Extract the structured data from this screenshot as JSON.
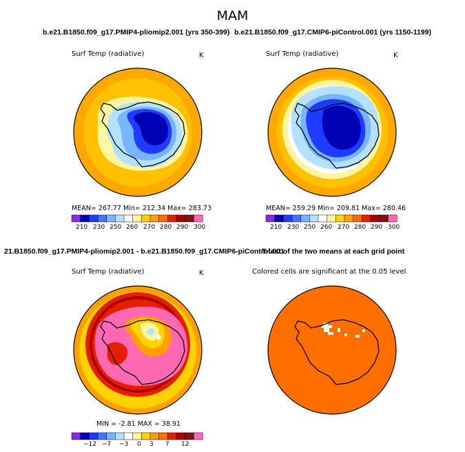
{
  "figure": {
    "season": "MAM",
    "case1_title": "b.e21.B1850.f09_g17.PMIP4-pliomip2.001 (yrs 350-399)",
    "case2_title": "b.e21.B1850.f09_g17.CMIP6-piControl.001 (yrs 1150-1199)",
    "diff_title": "21.B1850.f09_g17.PMIP4-pliomip2.001 - b.e21.B1850.f09_g17.CMIP6-piControl.001",
    "ttest_title": "T-test of the two means at each grid point"
  },
  "panels": {
    "p1": {
      "variable": "Surf Temp (radiative)",
      "units": "K",
      "stats": "MEAN= 267.77   Min= 212.34   Max= 283.73"
    },
    "p2": {
      "variable": "Surf Temp (radiative)",
      "units": "K",
      "stats": "MEAN= 259.29   Min= 209.81   Max= 280.46"
    },
    "p3": {
      "variable": "Surf Temp (radiative)",
      "units": "K",
      "stats": "MIN =  -2.81  MAX =   38.91"
    },
    "p4": {
      "note": "Colored cells are significant at the 0.05 level"
    }
  },
  "chart_data": [
    {
      "type": "heatmap",
      "title": "Surf Temp (radiative)",
      "case": "b.e21.B1850.f09_g17.PMIP4-pliomip2.001 (yrs 350-399)",
      "units": "K",
      "stats": {
        "mean": 267.77,
        "min": 212.34,
        "max": 283.73
      },
      "colorbar_labels": [
        "210",
        "230",
        "250",
        "260",
        "270",
        "280",
        "290",
        "300"
      ]
    },
    {
      "type": "heatmap",
      "title": "Surf Temp (radiative)",
      "case": "b.e21.B1850.f09_g17.CMIP6-piControl.001 (yrs 1150-1199)",
      "units": "K",
      "stats": {
        "mean": 259.29,
        "min": 209.81,
        "max": 280.46
      },
      "colorbar_labels": [
        "210",
        "230",
        "250",
        "260",
        "270",
        "280",
        "290",
        "300"
      ]
    },
    {
      "type": "heatmap",
      "title": "Surf Temp (radiative)",
      "units": "K",
      "stats": {
        "min": -2.81,
        "max": 38.91
      },
      "colorbar_labels": [
        "−12",
        "−7",
        "−3",
        "0",
        "3",
        "7",
        "12"
      ]
    },
    {
      "type": "heatmap",
      "title": "T-test of the two means at each grid point",
      "note": "Colored cells are significant at the 0.05 level"
    }
  ],
  "colors": {
    "abs_bar": [
      "#8a2be2",
      "#0000b4",
      "#1e3cff",
      "#3c78ff",
      "#78b4ff",
      "#b4e1ff",
      "#ffffff",
      "#fff5a0",
      "#ffd200",
      "#ffa000",
      "#ff6e00",
      "#e61e00",
      "#aa0000",
      "#781414",
      "#ff69b4"
    ],
    "diff_bar": [
      "#8a2be2",
      "#0000b4",
      "#1e3cff",
      "#3c78ff",
      "#78b4ff",
      "#b4e1ff",
      "#ffffff",
      "#fff5a0",
      "#ffd200",
      "#ffa000",
      "#ff6e00",
      "#e61e00",
      "#aa0000",
      "#781414",
      "#ff69b4"
    ],
    "ocean_warm": "#ffa800",
    "ocean_mid": "#ffc000",
    "sig": "#ff6e00"
  }
}
